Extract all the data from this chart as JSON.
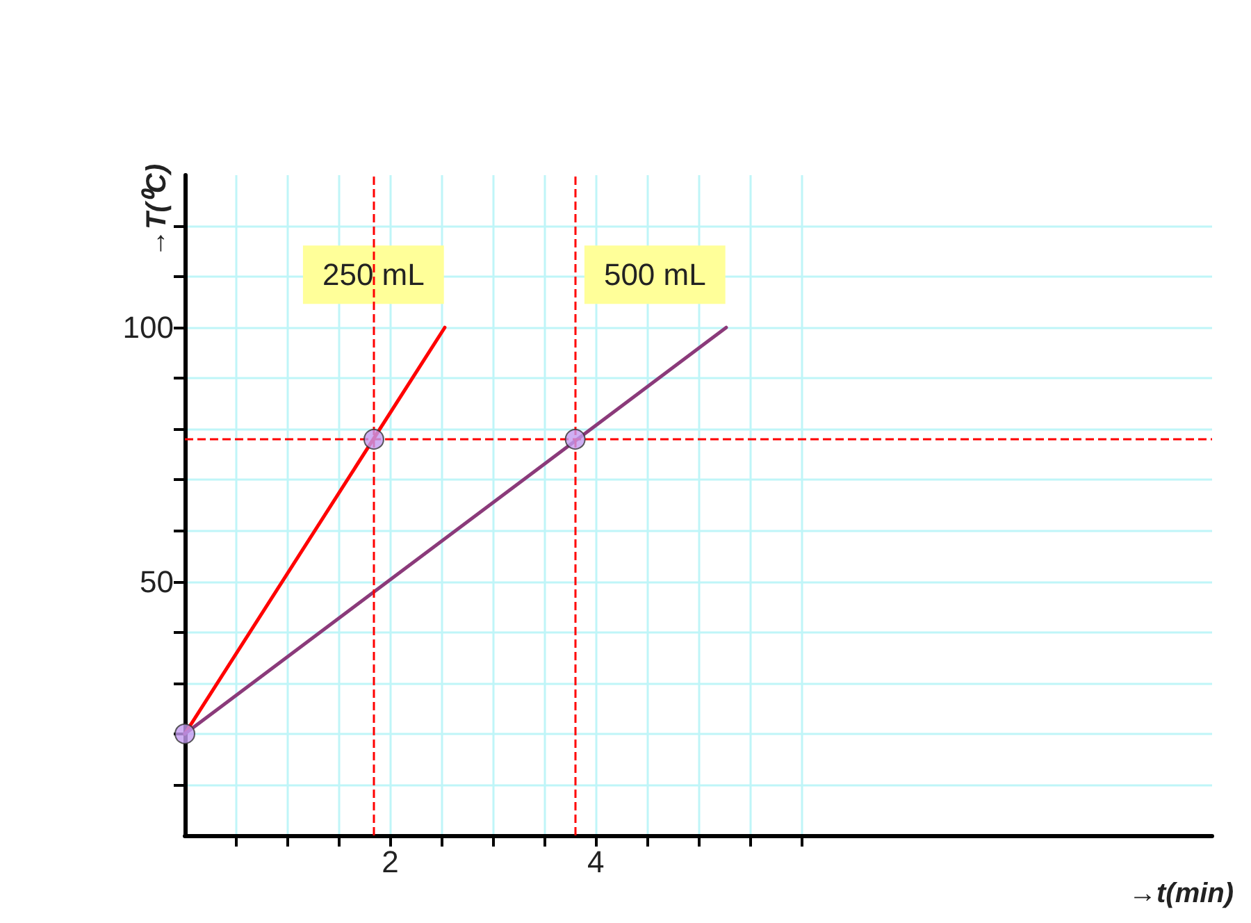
{
  "chart_data": {
    "type": "line",
    "xlabel": "→t(min)",
    "ylabel": "→T(⁰C)",
    "xlim": [
      0,
      10
    ],
    "ylim": [
      0,
      130
    ],
    "xticks": [
      {
        "value": 0.5,
        "label": null
      },
      {
        "value": 1,
        "label": null
      },
      {
        "value": 1.5,
        "label": null
      },
      2,
      {
        "value": 2.5,
        "label": null
      },
      {
        "value": 3,
        "label": null
      },
      {
        "value": 3.5,
        "label": null
      },
      4,
      {
        "value": 4.5,
        "label": null
      },
      {
        "value": 5,
        "label": null
      },
      {
        "value": 5.5,
        "label": null
      },
      {
        "value": 6,
        "label": null
      }
    ],
    "yticks": [
      {
        "value": 10,
        "label": null
      },
      {
        "value": 20,
        "label": null
      },
      {
        "value": 30,
        "label": null
      },
      {
        "value": 40,
        "label": null
      },
      50,
      {
        "value": 60,
        "label": null
      },
      {
        "value": 70,
        "label": null
      },
      {
        "value": 80,
        "label": null
      },
      {
        "value": 90,
        "label": null
      },
      100,
      {
        "value": 110,
        "label": null
      },
      {
        "value": 120,
        "label": null
      }
    ],
    "grid": true,
    "marker": "none",
    "series": [
      {
        "name": "250 mL",
        "color": "#ff0000",
        "x": [
          0,
          2.53
        ],
        "values": [
          20,
          100
        ]
      },
      {
        "name": "500 mL",
        "color": "#8b3a7a",
        "x": [
          0,
          5.27
        ],
        "values": [
          20,
          100
        ]
      },
      {
        "type": "scatter",
        "color": "#c39bf0",
        "marker": "circle",
        "x": [
          0,
          1.84,
          3.8
        ],
        "values": [
          20,
          78,
          78
        ]
      }
    ],
    "ref_lines": [
      {
        "axis": "y",
        "value": 78,
        "color": "#ff0000",
        "line_style": "dashed"
      },
      {
        "axis": "x",
        "value": 1.84,
        "color": "#ff0000",
        "line_style": "dashed"
      },
      {
        "axis": "x",
        "value": 3.8,
        "color": "#ff0000",
        "line_style": "dashed"
      }
    ]
  }
}
